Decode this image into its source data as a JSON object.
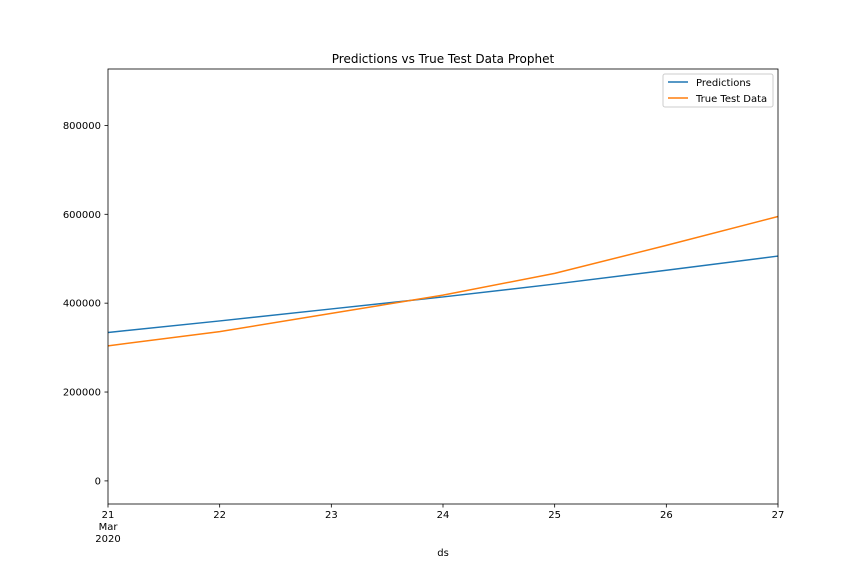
{
  "chart_data": {
    "type": "line",
    "title": "Predictions vs True Test Data Prophet",
    "xlabel": "ds",
    "ylabel": "",
    "x": [
      "2020-03-21",
      "2020-03-22",
      "2020-03-23",
      "2020-03-24",
      "2020-03-25",
      "2020-03-26",
      "2020-03-27"
    ],
    "x_tick_labels": [
      {
        "x": "2020-03-21",
        "lines": [
          "21",
          "Mar",
          "2020"
        ]
      },
      {
        "x": "2020-03-22",
        "lines": [
          "22"
        ]
      },
      {
        "x": "2020-03-23",
        "lines": [
          "23"
        ]
      },
      {
        "x": "2020-03-24",
        "lines": [
          "24"
        ]
      },
      {
        "x": "2020-03-25",
        "lines": [
          "25"
        ]
      },
      {
        "x": "2020-03-26",
        "lines": [
          "26"
        ]
      },
      {
        "x": "2020-03-27",
        "lines": [
          "27"
        ]
      }
    ],
    "y_ticks": [
      0,
      200000,
      400000,
      600000,
      800000
    ],
    "y_tick_labels": [
      "0",
      "200000",
      "400000",
      "600000",
      "800000"
    ],
    "ylim": [
      -52000,
      927000
    ],
    "grid": false,
    "legend_position": "top-right",
    "series": [
      {
        "name": "Predictions",
        "color": "#1f77b4",
        "values": [
          334000,
          360000,
          387000,
          414000,
          443000,
          474000,
          506000
        ]
      },
      {
        "name": "True Test Data",
        "color": "#ff7f0e",
        "values": [
          304000,
          336000,
          377000,
          418000,
          467000,
          530000,
          595000
        ]
      }
    ]
  }
}
